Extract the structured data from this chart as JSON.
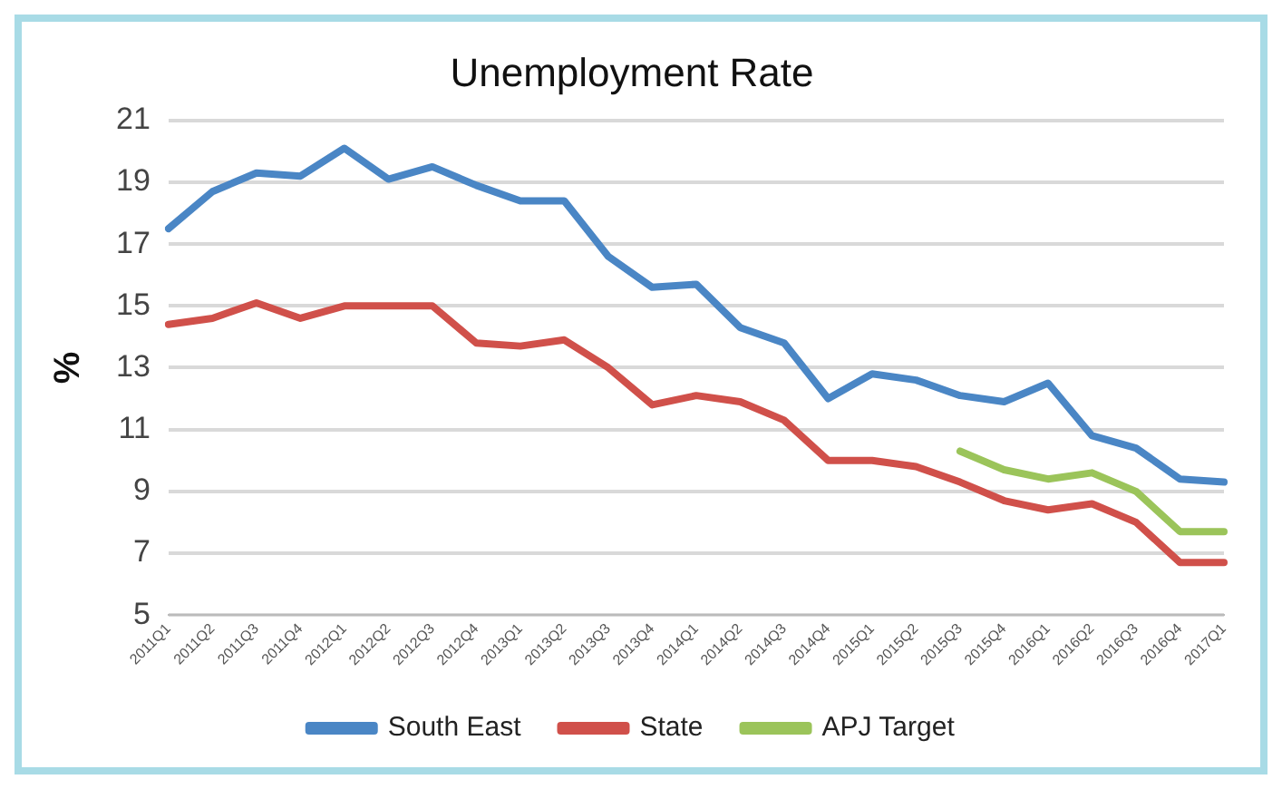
{
  "chart_data": {
    "type": "line",
    "title": "Unemployment Rate",
    "ylabel": "%",
    "categories": [
      "2011Q1",
      "2011Q2",
      "2011Q3",
      "2011Q4",
      "2012Q1",
      "2012Q2",
      "2012Q3",
      "2012Q4",
      "2013Q1",
      "2013Q2",
      "2013Q3",
      "2013Q4",
      "2014Q1",
      "2014Q2",
      "2014Q3",
      "2014Q4",
      "2015Q1",
      "2015Q2",
      "2015Q3",
      "2015Q4",
      "2016Q1",
      "2016Q2",
      "2016Q3",
      "2016Q4",
      "2017Q1"
    ],
    "series": [
      {
        "name": "South East",
        "color": "#4a86c5",
        "values": [
          17.5,
          18.7,
          19.3,
          19.2,
          20.1,
          19.1,
          19.5,
          18.9,
          18.4,
          18.4,
          16.6,
          15.6,
          15.7,
          14.3,
          13.8,
          12.0,
          12.8,
          12.6,
          12.1,
          11.9,
          12.5,
          10.8,
          10.4,
          9.4,
          9.3
        ]
      },
      {
        "name": "State",
        "color": "#d0504a",
        "values": [
          14.4,
          14.6,
          15.1,
          14.6,
          15.0,
          15.0,
          15.0,
          13.8,
          13.7,
          13.9,
          13.0,
          11.8,
          12.1,
          11.9,
          11.3,
          10.0,
          10.0,
          9.8,
          9.3,
          8.7,
          8.4,
          8.6,
          8.0,
          6.7,
          6.7
        ]
      },
      {
        "name": "APJ Target",
        "color": "#9bc45a",
        "values": [
          null,
          null,
          null,
          null,
          null,
          null,
          null,
          null,
          null,
          null,
          null,
          null,
          null,
          null,
          null,
          null,
          null,
          null,
          10.3,
          9.7,
          9.4,
          9.6,
          9.0,
          7.7,
          7.7
        ]
      }
    ],
    "ylim": [
      5,
      21
    ],
    "yticks": [
      5,
      7,
      9,
      11,
      13,
      15,
      17,
      19,
      21
    ],
    "grid": "y",
    "legend": "bottom",
    "marker": "none",
    "line_style": "solid"
  }
}
